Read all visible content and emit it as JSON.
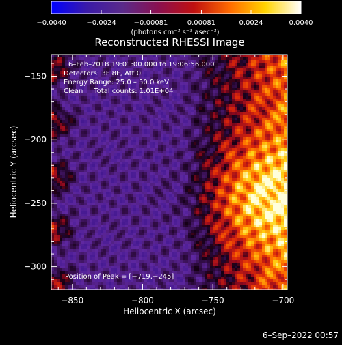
{
  "chart_data": {
    "type": "heatmap",
    "title": "Reconstructed RHESSI Image",
    "xlabel": "Heliocentric X (arcsec)",
    "ylabel": "Heliocentric Y (arcsec)",
    "xlim": [
      -865,
      -697
    ],
    "ylim": [
      -318,
      -133
    ],
    "x_ticks": [
      -850,
      -800,
      -750,
      -700
    ],
    "x_tick_labels": [
      "−850",
      "−800",
      "−750",
      "−700"
    ],
    "y_ticks": [
      -150,
      -200,
      -250,
      -300
    ],
    "y_tick_labels": [
      "−150",
      "−200",
      "−250",
      "−300"
    ],
    "colorbar": {
      "range": [
        -0.004,
        0.004
      ],
      "ticks": [
        -0.004,
        -0.0024,
        -0.00081,
        0.00081,
        0.0024,
        0.004
      ],
      "tick_labels": [
        "−0.0040",
        "−0.0024",
        "−0.00081",
        "0.00081",
        "0.0024",
        "0.0040"
      ],
      "unit_label": "(photons cm⁻² s⁻¹ asec⁻²)",
      "colors": [
        "#0000ff",
        "#3a1aa8",
        "#5a2a8a",
        "#8a1050",
        "#c01010",
        "#ff6a00",
        "#ffd400",
        "#ffffff"
      ]
    },
    "annotations": {
      "time_range": "6–Feb–2018 19:01:00.000 to 19:06:56.000",
      "detectors": "Detectors: 3F 8F, Att 0",
      "energy_range": "Energy Range: 25.0 – 50.0 keV",
      "method_counts": "Clean     Total counts: 1.01E+04",
      "peak": "Position of Peak = [−719,−245]"
    },
    "peak": {
      "x": -719,
      "y": -245
    },
    "footer_timestamp": "6–Sep–2022 00:57"
  }
}
